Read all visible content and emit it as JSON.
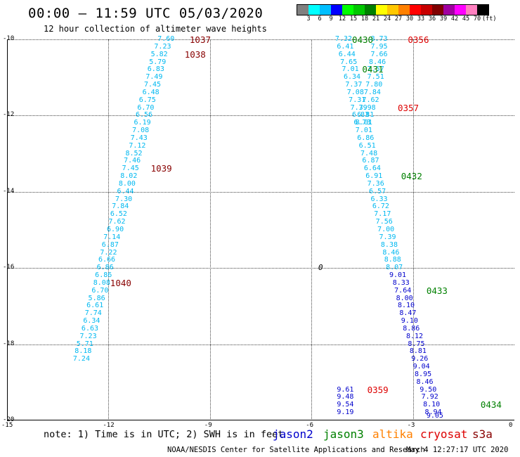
{
  "header": {
    "title": "00:00 – 11:59 UTC 05/03/2020",
    "subtitle": "12 hour collection of altimeter wave heights"
  },
  "colorbar": {
    "colors": [
      "#808080",
      "#00ffff",
      "#00bfff",
      "#0000ff",
      "#00ff00",
      "#00c800",
      "#008000",
      "#ffff00",
      "#ffc800",
      "#ff8000",
      "#ff0000",
      "#c80000",
      "#800000",
      "#a000a0",
      "#ff00ff",
      "#ff80c0",
      "#000000"
    ],
    "labels": [
      "3",
      "6",
      "9",
      "12",
      "15",
      "18",
      "21",
      "24",
      "27",
      "30",
      "33",
      "36",
      "39",
      "42",
      "45",
      "70",
      "(ft)"
    ]
  },
  "axes": {
    "x_ticks": [
      "-15",
      "-12",
      "-9",
      "-6",
      "-3",
      "0"
    ],
    "y_ticks": [
      "-10",
      "-12",
      "-14",
      "-16",
      "-18",
      "-20"
    ],
    "x_range": [
      -15,
      0
    ],
    "y_range": [
      -20,
      -10
    ]
  },
  "colors": {
    "cyan": "#00b8f0",
    "blue": "#0000cc",
    "pass_red": "#dd0000",
    "pass_darkred": "#880000",
    "pass_green": "#008000"
  },
  "tracks": [
    {
      "satellite": "cryosat",
      "points": [
        {
          "lon": -10.3,
          "lat": -10.0,
          "v": "7.60"
        },
        {
          "lon": -10.4,
          "lat": -10.2,
          "v": "7.23"
        },
        {
          "lon": -10.5,
          "lat": -10.4,
          "v": "5.82"
        },
        {
          "lon": -10.55,
          "lat": -10.6,
          "v": "5.79"
        },
        {
          "lon": -10.6,
          "lat": -10.8,
          "v": "6.83"
        },
        {
          "lon": -10.65,
          "lat": -11.0,
          "v": "7.49"
        },
        {
          "lon": -10.7,
          "lat": -11.2,
          "v": "7.45"
        },
        {
          "lon": -10.75,
          "lat": -11.4,
          "v": "6.48"
        },
        {
          "lon": -10.85,
          "lat": -11.6,
          "v": "6.75"
        },
        {
          "lon": -10.9,
          "lat": -11.8,
          "v": "6.70"
        },
        {
          "lon": -10.95,
          "lat": -12.0,
          "v": "6.56"
        },
        {
          "lon": -11.0,
          "lat": -12.2,
          "v": "6.19"
        },
        {
          "lon": -11.05,
          "lat": -12.4,
          "v": "7.08"
        },
        {
          "lon": -11.1,
          "lat": -12.6,
          "v": "7.43"
        },
        {
          "lon": -11.15,
          "lat": -12.8,
          "v": "7.12"
        },
        {
          "lon": -11.25,
          "lat": -13.0,
          "v": "8.52"
        },
        {
          "lon": -11.3,
          "lat": -13.2,
          "v": "7.46"
        },
        {
          "lon": -11.35,
          "lat": -13.4,
          "v": "7.45"
        },
        {
          "lon": -11.4,
          "lat": -13.6,
          "v": "8.02"
        },
        {
          "lon": -11.45,
          "lat": -13.8,
          "v": "8.00"
        },
        {
          "lon": -11.5,
          "lat": -14.0,
          "v": "6.44"
        },
        {
          "lon": -11.55,
          "lat": -14.2,
          "v": "7.30"
        },
        {
          "lon": -11.65,
          "lat": -14.4,
          "v": "7.84"
        },
        {
          "lon": -11.7,
          "lat": -14.6,
          "v": "6.52"
        },
        {
          "lon": -11.75,
          "lat": -14.8,
          "v": "7.62"
        },
        {
          "lon": -11.8,
          "lat": -15.0,
          "v": "6.90"
        },
        {
          "lon": -11.9,
          "lat": -15.2,
          "v": "7.14"
        },
        {
          "lon": -11.95,
          "lat": -15.4,
          "v": "6.87"
        },
        {
          "lon": -12.0,
          "lat": -15.6,
          "v": "7.22"
        },
        {
          "lon": -12.05,
          "lat": -15.8,
          "v": "6.66"
        },
        {
          "lon": -12.1,
          "lat": -16.0,
          "v": "6.86"
        },
        {
          "lon": -12.15,
          "lat": -16.2,
          "v": "6.86"
        },
        {
          "lon": -12.2,
          "lat": -16.4,
          "v": "8.08"
        },
        {
          "lon": -12.25,
          "lat": -16.6,
          "v": "6.70"
        },
        {
          "lon": -12.35,
          "lat": -16.8,
          "v": "5.86"
        },
        {
          "lon": -12.4,
          "lat": -17.0,
          "v": "6.61"
        },
        {
          "lon": -12.45,
          "lat": -17.2,
          "v": "7.74"
        },
        {
          "lon": -12.5,
          "lat": -17.4,
          "v": "6.34"
        },
        {
          "lon": -12.55,
          "lat": -17.6,
          "v": "6.63"
        },
        {
          "lon": -12.6,
          "lat": -17.8,
          "v": "7.23"
        },
        {
          "lon": -12.7,
          "lat": -18.0,
          "v": "5.71"
        },
        {
          "lon": -12.75,
          "lat": -18.2,
          "v": "8.18"
        },
        {
          "lon": -12.8,
          "lat": -18.4,
          "v": "7.24"
        }
      ]
    },
    {
      "satellite": "jason3",
      "points": [
        {
          "lon": -5.05,
          "lat": -10.0,
          "v": "7.32"
        },
        {
          "lon": -5.0,
          "lat": -10.2,
          "v": "6.41"
        },
        {
          "lon": -4.95,
          "lat": -10.4,
          "v": "6.44"
        },
        {
          "lon": -4.9,
          "lat": -10.6,
          "v": "7.65"
        },
        {
          "lon": -4.85,
          "lat": -10.8,
          "v": "7.01"
        },
        {
          "lon": -4.8,
          "lat": -11.0,
          "v": "6.34"
        },
        {
          "lon": -4.75,
          "lat": -11.2,
          "v": "7.37"
        },
        {
          "lon": -4.7,
          "lat": -11.4,
          "v": "7.08"
        },
        {
          "lon": -4.65,
          "lat": -11.6,
          "v": "7.31"
        },
        {
          "lon": -4.6,
          "lat": -11.8,
          "v": "7.39"
        },
        {
          "lon": -4.55,
          "lat": -12.0,
          "v": "6.83"
        },
        {
          "lon": -4.5,
          "lat": -12.2,
          "v": "6.73"
        },
        {
          "lon": -4.45,
          "lat": -12.4,
          "v": "7.01"
        },
        {
          "lon": -4.4,
          "lat": -12.6,
          "v": "6.86"
        },
        {
          "lon": -4.35,
          "lat": -12.8,
          "v": "6.51"
        },
        {
          "lon": -4.3,
          "lat": -13.0,
          "v": "7.48"
        },
        {
          "lon": -4.25,
          "lat": -13.2,
          "v": "6.87"
        },
        {
          "lon": -4.2,
          "lat": -13.4,
          "v": "6.64"
        },
        {
          "lon": -4.15,
          "lat": -13.6,
          "v": "6.91"
        },
        {
          "lon": -4.1,
          "lat": -13.8,
          "v": "7.36"
        },
        {
          "lon": -4.05,
          "lat": -14.0,
          "v": "6.57"
        },
        {
          "lon": -4.0,
          "lat": -14.2,
          "v": "6.33"
        },
        {
          "lon": -3.95,
          "lat": -14.4,
          "v": "6.72"
        },
        {
          "lon": -3.9,
          "lat": -14.6,
          "v": "7.17"
        },
        {
          "lon": -3.85,
          "lat": -14.8,
          "v": "7.56"
        },
        {
          "lon": -3.8,
          "lat": -15.0,
          "v": "7.00"
        },
        {
          "lon": -3.75,
          "lat": -15.2,
          "v": "7.39"
        },
        {
          "lon": -3.7,
          "lat": -15.4,
          "v": "8.38"
        },
        {
          "lon": -3.65,
          "lat": -15.6,
          "v": "8.46"
        },
        {
          "lon": -3.6,
          "lat": -15.8,
          "v": "8.88"
        },
        {
          "lon": -3.55,
          "lat": -16.0,
          "v": "8.07"
        }
      ]
    },
    {
      "satellite": "jason3b",
      "points": [
        {
          "lon": -4.0,
          "lat": -10.0,
          "v": "8.73"
        },
        {
          "lon": -4.0,
          "lat": -10.2,
          "v": "7.95"
        },
        {
          "lon": -4.0,
          "lat": -10.4,
          "v": "7.66"
        },
        {
          "lon": -4.05,
          "lat": -10.6,
          "v": "8.46"
        },
        {
          "lon": -4.1,
          "lat": -10.8,
          "v": "7.57"
        },
        {
          "lon": -4.1,
          "lat": -11.0,
          "v": "7.51"
        },
        {
          "lon": -4.15,
          "lat": -11.2,
          "v": "7.80"
        },
        {
          "lon": -4.2,
          "lat": -11.4,
          "v": "7.84"
        },
        {
          "lon": -4.25,
          "lat": -11.6,
          "v": "7.62"
        },
        {
          "lon": -4.35,
          "lat": -11.8,
          "v": "7.98"
        },
        {
          "lon": -4.4,
          "lat": -12.0,
          "v": "6.81"
        },
        {
          "lon": -4.45,
          "lat": -12.2,
          "v": "8.01"
        }
      ]
    },
    {
      "satellite": "cryosat_blue",
      "points": [
        {
          "lon": -3.45,
          "lat": -16.2,
          "v": "9.01"
        },
        {
          "lon": -3.35,
          "lat": -16.4,
          "v": "8.33"
        },
        {
          "lon": -3.3,
          "lat": -16.6,
          "v": "7.64"
        },
        {
          "lon": -3.25,
          "lat": -16.8,
          "v": "8.00"
        },
        {
          "lon": -3.2,
          "lat": -17.0,
          "v": "8.10"
        },
        {
          "lon": -3.15,
          "lat": -17.2,
          "v": "8.47"
        },
        {
          "lon": -3.1,
          "lat": -17.4,
          "v": "9.10"
        },
        {
          "lon": -3.05,
          "lat": -17.6,
          "v": "8.86"
        },
        {
          "lon": -2.95,
          "lat": -17.8,
          "v": "8.12"
        },
        {
          "lon": -2.9,
          "lat": -18.0,
          "v": "8.75"
        },
        {
          "lon": -2.85,
          "lat": -18.2,
          "v": "8.81"
        },
        {
          "lon": -2.8,
          "lat": -18.4,
          "v": "9.26"
        },
        {
          "lon": -2.75,
          "lat": -18.6,
          "v": "9.04"
        },
        {
          "lon": -2.7,
          "lat": -18.8,
          "v": "8.95"
        },
        {
          "lon": -2.65,
          "lat": -19.0,
          "v": "8.46"
        },
        {
          "lon": -2.55,
          "lat": -19.2,
          "v": "9.50"
        },
        {
          "lon": -2.5,
          "lat": -19.4,
          "v": "7.92"
        },
        {
          "lon": -2.45,
          "lat": -19.6,
          "v": "8.10"
        },
        {
          "lon": -2.4,
          "lat": -19.8,
          "v": "8.94"
        },
        {
          "lon": -2.35,
          "lat": -20.0,
          "v": "9.05"
        }
      ]
    },
    {
      "satellite": "jason2",
      "points": [
        {
          "lon": -5.0,
          "lat": -19.2,
          "v": "9.61"
        },
        {
          "lon": -5.0,
          "lat": -19.4,
          "v": "9.48"
        },
        {
          "lon": -5.0,
          "lat": -19.6,
          "v": "9.54"
        },
        {
          "lon": -5.0,
          "lat": -19.8,
          "v": "9.19"
        }
      ]
    }
  ],
  "pass_times": [
    {
      "lon": -9.6,
      "lat": -10.0,
      "t": "1037",
      "c": "darkred"
    },
    {
      "lon": -9.75,
      "lat": -10.4,
      "t": "1038",
      "c": "darkred"
    },
    {
      "lon": -10.75,
      "lat": -13.4,
      "t": "1039",
      "c": "darkred"
    },
    {
      "lon": -11.95,
      "lat": -16.4,
      "t": "1040",
      "c": "darkred"
    },
    {
      "lon": -4.8,
      "lat": -10.0,
      "t": "0430",
      "c": "green"
    },
    {
      "lon": -3.15,
      "lat": -10.0,
      "t": "0356",
      "c": "red"
    },
    {
      "lon": -4.5,
      "lat": -10.8,
      "t": "0431",
      "c": "green"
    },
    {
      "lon": -3.45,
      "lat": -11.8,
      "t": "0357",
      "c": "red"
    },
    {
      "lon": -3.35,
      "lat": -13.6,
      "t": "0432",
      "c": "green"
    },
    {
      "lon": -2.6,
      "lat": -16.6,
      "t": "0433",
      "c": "green"
    },
    {
      "lon": -4.35,
      "lat": -19.2,
      "t": "0359",
      "c": "red"
    },
    {
      "lon": -1.0,
      "lat": -19.6,
      "t": "0434",
      "c": "green"
    }
  ],
  "marker": {
    "lon": -5.8,
    "lat": -16.0,
    "t": "0"
  },
  "note": "note: 1) Time is in UTC; 2) SWH is in feet",
  "legend": [
    {
      "label": "jason2",
      "color": "#0000cc"
    },
    {
      "label": "jason3",
      "color": "#008000"
    },
    {
      "label": "altika",
      "color": "#ff8000"
    },
    {
      "label": "cryosat",
      "color": "#dd0000"
    },
    {
      "label": "s3a",
      "color": "#880000"
    }
  ],
  "footer": {
    "left": "NOAA/NESDIS Center for Satellite Applications and Research",
    "right": "May  4 12:27:17 UTC 2020"
  }
}
